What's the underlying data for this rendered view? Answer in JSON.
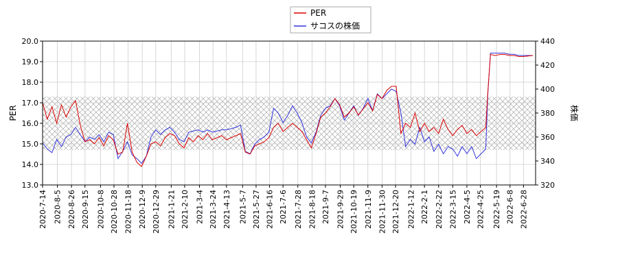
{
  "chart_data": {
    "type": "line",
    "ylabel": "PER",
    "y2label": "株価",
    "x": [
      "2020-7-14",
      "2020-7-21",
      "2020-7-28",
      "2020-8-4",
      "2020-8-11",
      "2020-8-18",
      "2020-8-25",
      "2020-9-1",
      "2020-9-8",
      "2020-9-15",
      "2020-9-22",
      "2020-9-29",
      "2020-10-6",
      "2020-10-13",
      "2020-10-20",
      "2020-10-27",
      "2020-11-3",
      "2020-11-10",
      "2020-11-17",
      "2020-11-24",
      "2020-12-1",
      "2020-12-8",
      "2020-12-15",
      "2020-12-22",
      "2020-12-29",
      "2021-1-5",
      "2021-1-12",
      "2021-1-19",
      "2021-1-26",
      "2021-2-2",
      "2021-2-9",
      "2021-2-16",
      "2021-2-23",
      "2021-3-2",
      "2021-3-9",
      "2021-3-16",
      "2021-3-23",
      "2021-3-30",
      "2021-4-6",
      "2021-4-13",
      "2021-4-20",
      "2021-4-27",
      "2021-5-4",
      "2021-5-11",
      "2021-5-18",
      "2021-5-25",
      "2021-6-1",
      "2021-6-8",
      "2021-6-15",
      "2021-6-22",
      "2021-6-29",
      "2021-7-6",
      "2021-7-13",
      "2021-7-20",
      "2021-7-27",
      "2021-8-3",
      "2021-8-10",
      "2021-8-17",
      "2021-8-24",
      "2021-8-31",
      "2021-9-7",
      "2021-9-14",
      "2021-9-21",
      "2021-9-28",
      "2021-10-5",
      "2021-10-12",
      "2021-10-19",
      "2021-10-26",
      "2021-11-2",
      "2021-11-9",
      "2021-11-16",
      "2021-11-23",
      "2021-11-30",
      "2021-12-7",
      "2021-12-14",
      "2021-12-21",
      "2021-12-28",
      "2022-1-4",
      "2022-1-11",
      "2022-1-18",
      "2022-1-25",
      "2022-2-1",
      "2022-2-8",
      "2022-2-15",
      "2022-2-22",
      "2022-3-1",
      "2022-3-8",
      "2022-3-15",
      "2022-3-22",
      "2022-3-29",
      "2022-4-5",
      "2022-4-12",
      "2022-4-19",
      "2022-4-26",
      "2022-5-3",
      "2022-5-6",
      "2022-5-10",
      "2022-5-17",
      "2022-5-24",
      "2022-5-31",
      "2022-6-7",
      "2022-6-14",
      "2022-6-21",
      "2022-6-28",
      "2022-7-12"
    ],
    "series": [
      {
        "name": "PER",
        "color": "#dd0000",
        "values": [
          17.0,
          16.2,
          16.8,
          16.0,
          16.9,
          16.3,
          16.8,
          17.1,
          15.9,
          15.1,
          15.2,
          15.0,
          15.3,
          14.9,
          15.4,
          15.2,
          14.5,
          14.6,
          16.0,
          14.6,
          14.1,
          13.9,
          14.4,
          15.0,
          15.1,
          14.9,
          15.3,
          15.5,
          15.4,
          15.0,
          14.8,
          15.3,
          15.1,
          15.4,
          15.2,
          15.5,
          15.2,
          15.3,
          15.4,
          15.2,
          15.3,
          15.4,
          15.5,
          14.6,
          14.5,
          14.9,
          15.0,
          15.1,
          15.3,
          15.8,
          16.0,
          15.6,
          15.8,
          16.0,
          15.8,
          15.6,
          15.2,
          14.8,
          15.5,
          16.3,
          16.5,
          16.8,
          17.2,
          16.9,
          16.3,
          16.5,
          16.8,
          16.4,
          16.7,
          17.0,
          16.6,
          17.4,
          17.2,
          17.6,
          17.8,
          17.8,
          15.5,
          16.0,
          15.8,
          16.5,
          15.6,
          16.0,
          15.6,
          15.8,
          15.5,
          16.2,
          15.7,
          15.4,
          15.7,
          15.9,
          15.5,
          15.7,
          15.4,
          15.6,
          15.8,
          17.5,
          19.35,
          19.3,
          19.35,
          19.35,
          19.3,
          19.3,
          19.25,
          19.25,
          19.3
        ]
      },
      {
        "name": "サコスの株価",
        "color": "#3333dd",
        "axis": "y2",
        "values": [
          355,
          350,
          347,
          358,
          352,
          360,
          362,
          368,
          362,
          356,
          360,
          358,
          362,
          356,
          364,
          362,
          342,
          348,
          356,
          345,
          342,
          338,
          344,
          360,
          366,
          362,
          366,
          368,
          364,
          358,
          356,
          364,
          365,
          366,
          364,
          366,
          364,
          365,
          366,
          366,
          367,
          368,
          370,
          348,
          346,
          354,
          358,
          360,
          364,
          384,
          380,
          372,
          378,
          386,
          380,
          372,
          360,
          355,
          364,
          378,
          384,
          386,
          392,
          386,
          374,
          380,
          386,
          378,
          384,
          392,
          382,
          396,
          392,
          396,
          400,
          398,
          380,
          352,
          358,
          354,
          368,
          356,
          360,
          348,
          354,
          346,
          352,
          350,
          344,
          352,
          346,
          352,
          342,
          346,
          350,
          395,
          430,
          430,
          430,
          430,
          429,
          429,
          428,
          428,
          428
        ]
      }
    ],
    "band": [
      14.7,
      17.3
    ],
    "xlim": [
      "2020-7-14",
      "2022-7-16"
    ],
    "xticks": [
      "2020-7-14",
      "2020-8-5",
      "2020-8-26",
      "2020-9-15",
      "2020-10-8",
      "2020-10-28",
      "2020-11-18",
      "2020-12-9",
      "2020-12-29",
      "2021-1-21",
      "2021-2-10",
      "2021-3-4",
      "2021-3-24",
      "2021-4-13",
      "2021-5-7",
      "2021-5-27",
      "2021-6-16",
      "2021-7-6",
      "2021-7-28",
      "2021-8-18",
      "2021-9-7",
      "2021-9-29",
      "2021-10-19",
      "2021-11-9",
      "2021-11-30",
      "2021-12-20",
      "2022-1-12",
      "2022-2-1",
      "2022-2-22",
      "2022-3-15",
      "2022-4-5",
      "2022-4-25",
      "2022-5-19",
      "2022-6-8",
      "2022-6-28"
    ],
    "ylim": [
      13,
      20
    ],
    "yticks": [
      {
        "value": 13,
        "label": "13.0"
      },
      {
        "value": 14,
        "label": "14.0"
      },
      {
        "value": 15,
        "label": "15.0"
      },
      {
        "value": 16,
        "label": "16.0"
      },
      {
        "value": 17,
        "label": "17.0"
      },
      {
        "value": 18,
        "label": "18.0"
      },
      {
        "value": 19,
        "label": "19.0"
      },
      {
        "value": 20,
        "label": "20.0"
      }
    ],
    "y2lim": [
      320,
      440
    ],
    "y2ticks": [
      320,
      340,
      360,
      380,
      400,
      420,
      440
    ],
    "grid": true,
    "legend": "top"
  }
}
